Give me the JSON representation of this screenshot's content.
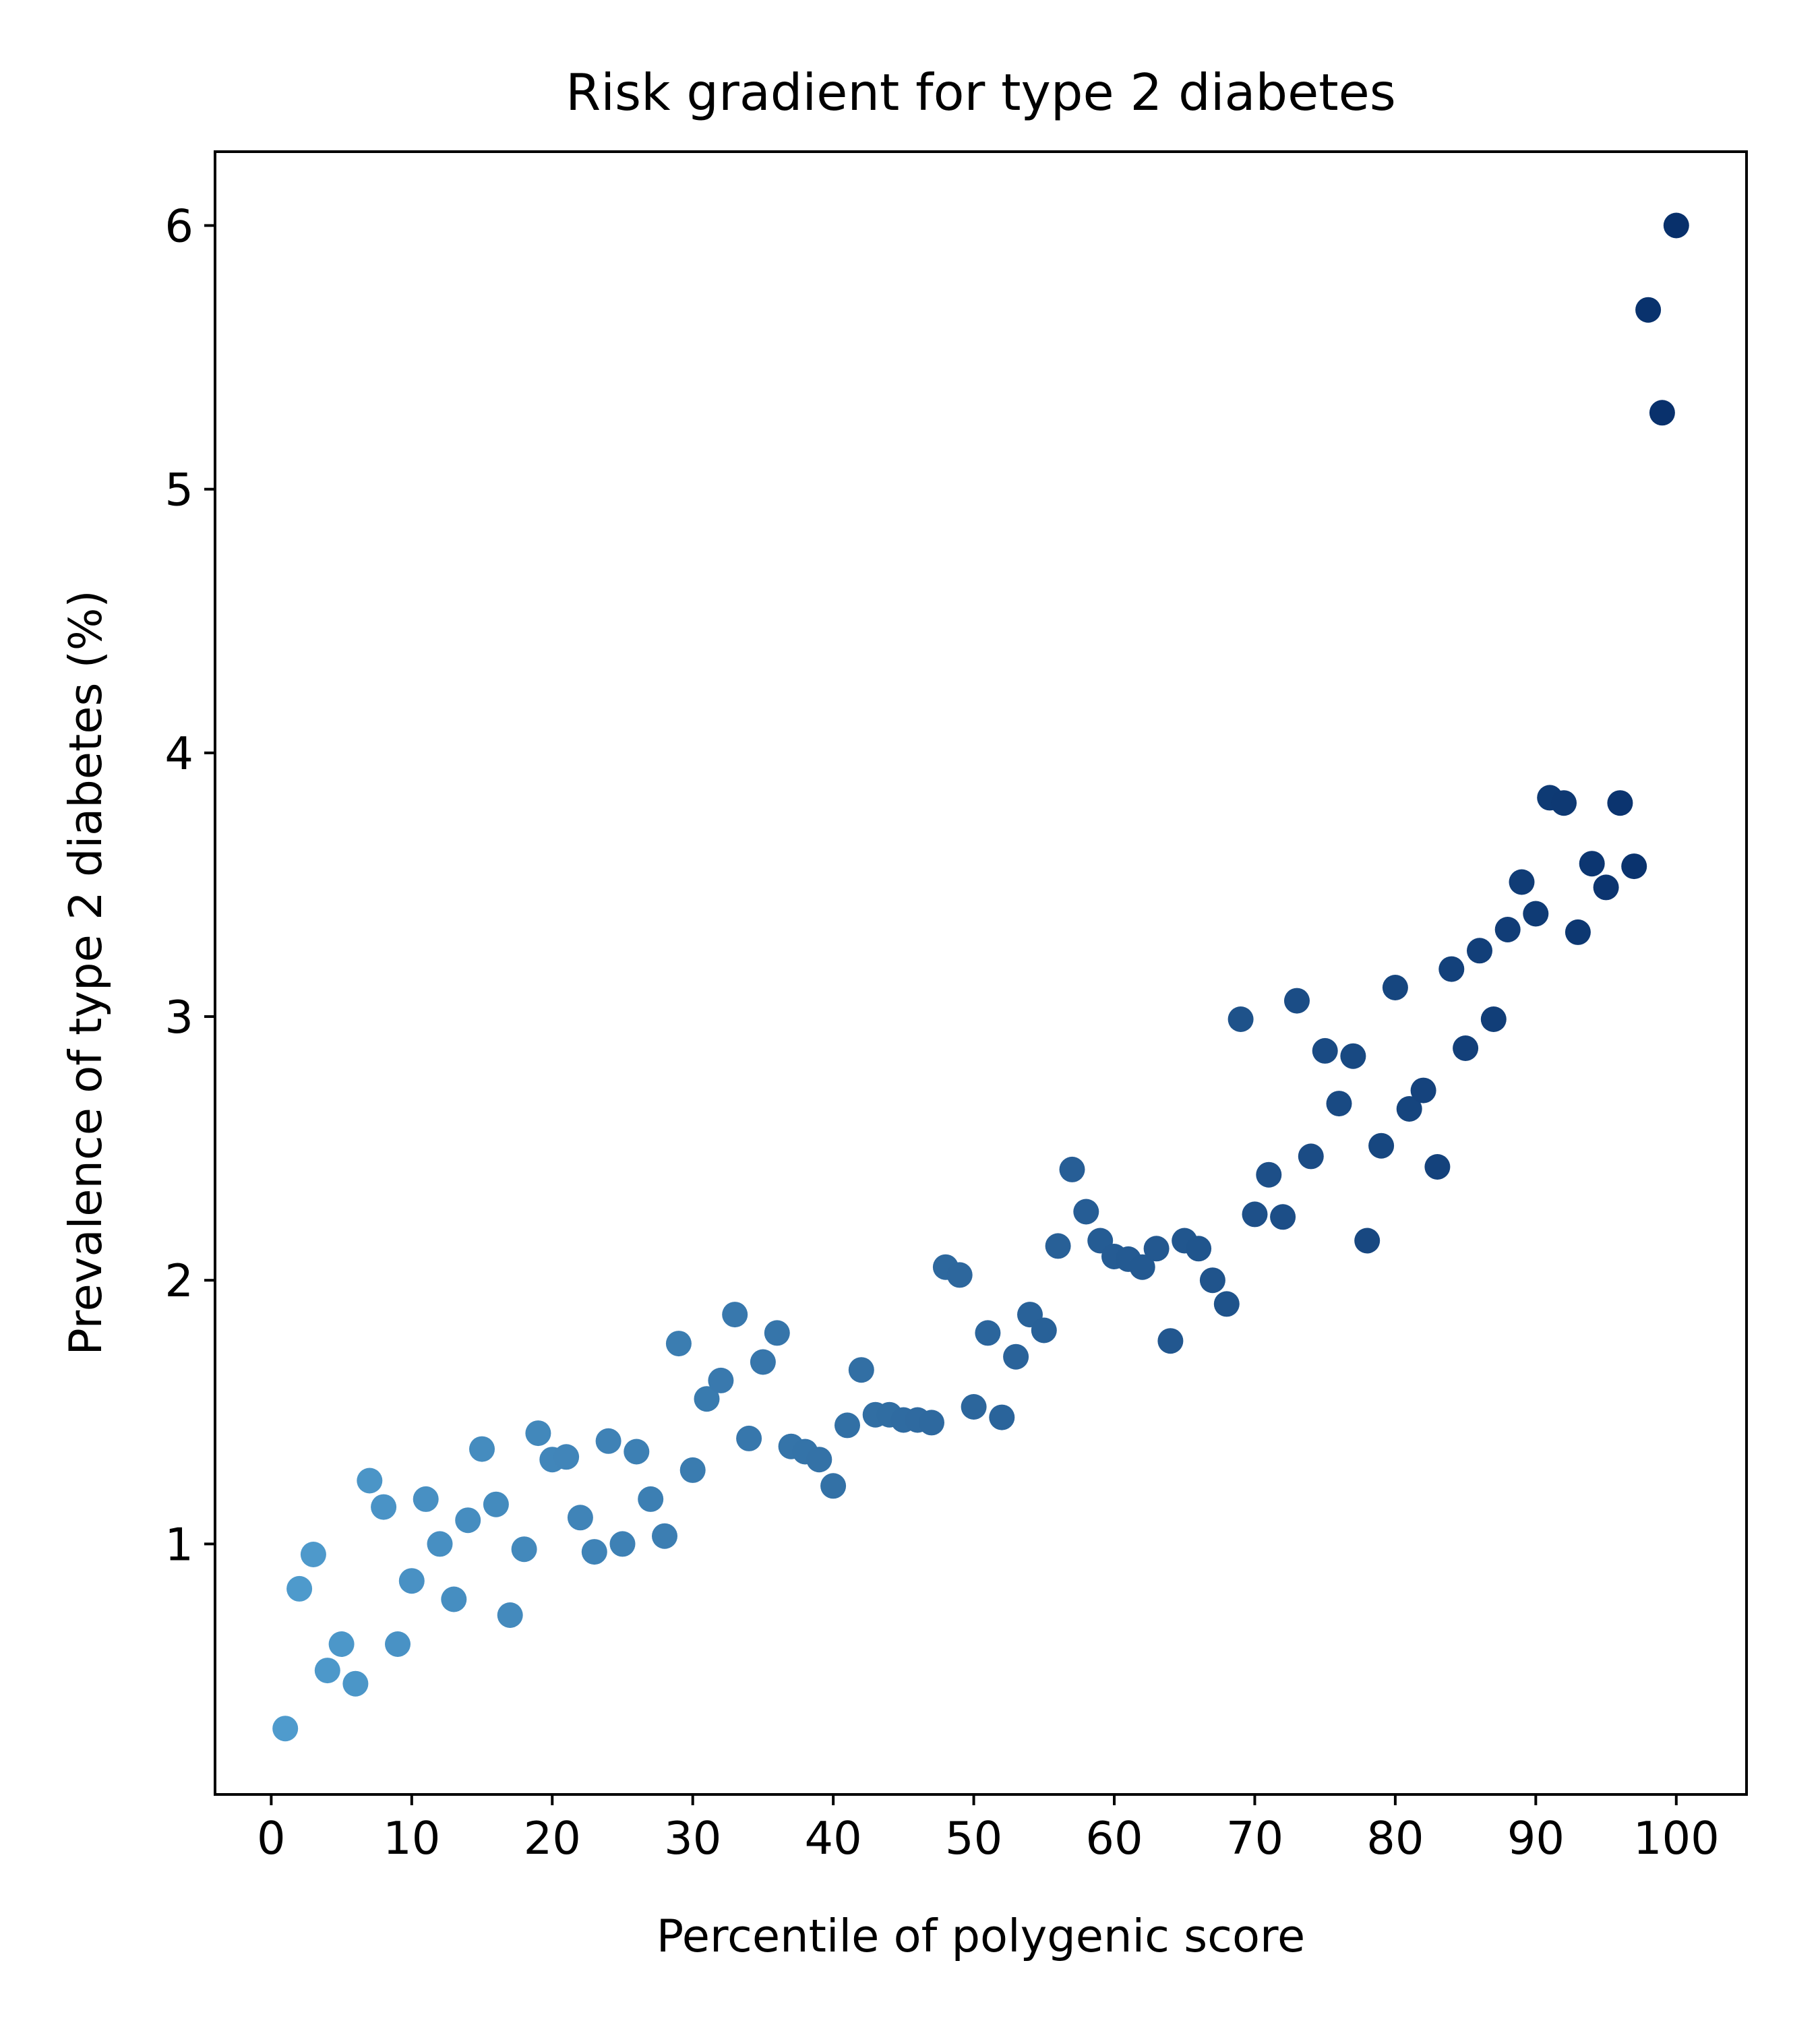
{
  "chart_data": {
    "type": "scatter",
    "title": "Risk gradient for type 2 diabetes",
    "xlabel": "Percentile of polygenic score",
    "ylabel": "Prevalence of type 2 diabetes (%)",
    "xlim": [
      -4,
      105
    ],
    "ylim": [
      0.05,
      6.28
    ],
    "xticks": [
      0,
      10,
      20,
      30,
      40,
      50,
      60,
      70,
      80,
      90,
      100
    ],
    "yticks": [
      1,
      2,
      3,
      4,
      5,
      6
    ],
    "grid": false,
    "legend": "none",
    "colormap": "Blues",
    "color_range": [
      "#4f9bcd",
      "#08306b"
    ],
    "x": [
      1,
      2,
      3,
      4,
      5,
      6,
      7,
      8,
      9,
      10,
      11,
      12,
      13,
      14,
      15,
      16,
      17,
      18,
      19,
      20,
      21,
      22,
      23,
      24,
      25,
      26,
      27,
      28,
      29,
      30,
      31,
      32,
      33,
      34,
      35,
      36,
      37,
      38,
      39,
      40,
      41,
      42,
      43,
      44,
      45,
      46,
      47,
      48,
      49,
      50,
      51,
      52,
      53,
      54,
      55,
      56,
      57,
      58,
      59,
      60,
      61,
      62,
      63,
      64,
      65,
      66,
      67,
      68,
      69,
      70,
      71,
      72,
      73,
      74,
      75,
      76,
      77,
      78,
      79,
      80,
      81,
      82,
      83,
      84,
      85,
      86,
      87,
      88,
      89,
      90,
      91,
      92,
      93,
      94,
      95,
      96,
      97,
      98,
      99,
      100
    ],
    "y": [
      0.3,
      0.83,
      0.96,
      0.52,
      0.62,
      0.47,
      1.24,
      1.14,
      0.62,
      0.86,
      1.17,
      1.0,
      0.79,
      1.09,
      1.36,
      1.15,
      0.73,
      0.98,
      1.42,
      1.32,
      1.33,
      1.1,
      0.97,
      1.39,
      1.0,
      1.35,
      1.17,
      1.03,
      1.76,
      1.28,
      1.55,
      1.62,
      1.87,
      1.4,
      1.69,
      1.8,
      1.37,
      1.35,
      1.32,
      1.22,
      1.45,
      1.66,
      1.49,
      1.49,
      1.47,
      1.47,
      1.46,
      2.05,
      2.02,
      1.52,
      1.8,
      1.48,
      1.71,
      1.87,
      1.81,
      2.13,
      2.42,
      2.26,
      2.15,
      2.09,
      2.08,
      2.05,
      2.12,
      1.77,
      2.15,
      2.12,
      2.0,
      1.91,
      2.99,
      2.25,
      2.4,
      2.24,
      3.06,
      2.47,
      2.87,
      2.67,
      2.85,
      2.15,
      2.51,
      3.11,
      2.65,
      2.72,
      2.43,
      3.18,
      2.88,
      3.25,
      2.99,
      3.33,
      3.51,
      3.39,
      3.83,
      3.81,
      3.32,
      3.58,
      3.49,
      3.81,
      3.57,
      5.68,
      5.29,
      6.0
    ]
  }
}
